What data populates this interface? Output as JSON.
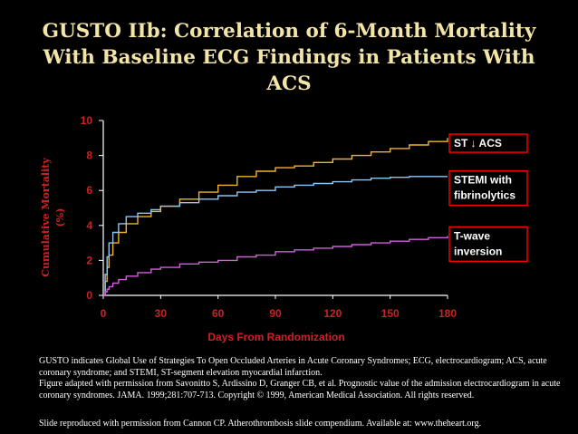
{
  "title_lines": [
    "GUSTO IIb: Correlation of 6-Month Mortality",
    "With Baseline ECG Findings in Patients With",
    "ACS"
  ],
  "colors": {
    "background": "#000000",
    "title": "#f3e4a8",
    "axis_label": "#cc2222",
    "legend_box": "#ff0000",
    "axes": "#ffffff"
  },
  "chart_data": {
    "type": "line",
    "xlabel": "Days From Randomization",
    "ylabel_lines": [
      "Cumulative Mortality",
      "(%)"
    ],
    "xlim": [
      0,
      180
    ],
    "ylim": [
      0,
      10
    ],
    "x_ticks": [
      0,
      30,
      60,
      90,
      120,
      150,
      180
    ],
    "y_ticks": [
      0,
      2,
      4,
      6,
      8,
      10
    ],
    "grid": false,
    "series": [
      {
        "name": "ST ↓ ACS",
        "color": "#f2b22f",
        "x": [
          0,
          1,
          2,
          3,
          5,
          8,
          12,
          18,
          25,
          30,
          40,
          50,
          60,
          70,
          80,
          90,
          100,
          110,
          120,
          130,
          140,
          150,
          160,
          170,
          180
        ],
        "y": [
          0,
          0.8,
          1.6,
          2.3,
          3.0,
          3.6,
          4.1,
          4.5,
          4.8,
          5.1,
          5.5,
          5.9,
          6.3,
          6.8,
          7.1,
          7.3,
          7.4,
          7.6,
          7.8,
          8.0,
          8.2,
          8.4,
          8.6,
          8.8,
          9.0
        ]
      },
      {
        "name": "STEMI with fibrinolytics",
        "color": "#8ec6f2",
        "x": [
          0,
          1,
          2,
          3,
          5,
          8,
          12,
          18,
          25,
          30,
          40,
          50,
          60,
          70,
          80,
          90,
          100,
          110,
          120,
          130,
          140,
          150,
          160,
          170,
          180
        ],
        "y": [
          0,
          1.2,
          2.2,
          3.0,
          3.6,
          4.1,
          4.5,
          4.7,
          4.9,
          5.1,
          5.3,
          5.5,
          5.7,
          5.9,
          6.0,
          6.2,
          6.3,
          6.4,
          6.5,
          6.6,
          6.7,
          6.75,
          6.8,
          6.8,
          6.8
        ]
      },
      {
        "name": "T-wave inversion",
        "color": "#d45ce0",
        "x": [
          0,
          1,
          2,
          3,
          5,
          8,
          12,
          18,
          25,
          30,
          40,
          50,
          60,
          70,
          80,
          90,
          100,
          110,
          120,
          130,
          140,
          150,
          160,
          170,
          180
        ],
        "y": [
          0,
          0.2,
          0.35,
          0.5,
          0.7,
          0.9,
          1.1,
          1.3,
          1.5,
          1.6,
          1.8,
          1.9,
          2.0,
          2.2,
          2.3,
          2.5,
          2.6,
          2.7,
          2.8,
          2.9,
          3.0,
          3.1,
          3.2,
          3.3,
          3.4
        ]
      }
    ],
    "legend_labels": [
      {
        "series": 0,
        "lines": [
          "ST ↓ ACS"
        ],
        "at_y": 8.7
      },
      {
        "series": 1,
        "lines": [
          "STEMI with",
          "fibrinolytics"
        ],
        "at_y": 6.6
      },
      {
        "series": 2,
        "lines": [
          "T-wave",
          "inversion"
        ],
        "at_y": 3.4
      }
    ]
  },
  "footnote1": "GUSTO indicates Global Use of Strategies To Open Occluded Arteries in Acute Coronary Syndromes; ECG, electrocardiogram; ACS, acute coronary syndrome; and STEMI, ST-segment elevation myocardial infarction.",
  "footnote2": "Figure adapted with permission from Savonitto S, Ardissino D, Granger CB, et al. Prognostic value of the admission electrocardiogram in acute coronary syndromes. JAMA. 1999;281:707-713. Copyright © 1999, American Medical Association. All rights reserved.",
  "footnote3": "Slide reproduced with permission from Cannon CP. Atherothrombosis slide compendium. Available at: www.theheart.org."
}
